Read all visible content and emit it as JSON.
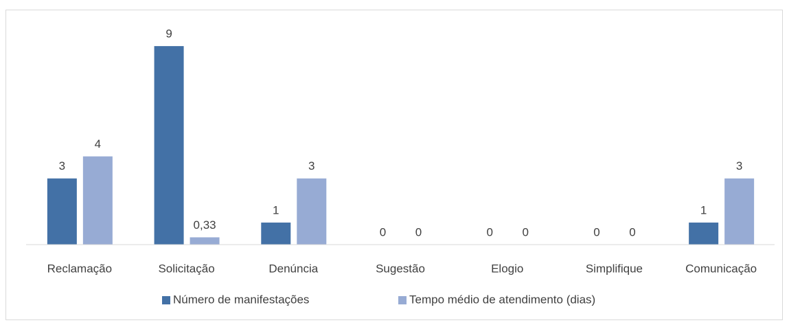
{
  "chart_data": {
    "type": "bar",
    "categories": [
      "Reclamação",
      "Solicitação",
      "Denúncia",
      "Sugestão",
      "Elogio",
      "Simplifique",
      "Comunicação"
    ],
    "series": [
      {
        "name": "Número de manifestações",
        "color": "#4371a6",
        "values": [
          3,
          9,
          1,
          0,
          0,
          0,
          1
        ]
      },
      {
        "name": "Tempo médio de atendimento (dias)",
        "color": "#97abd4",
        "values": [
          4,
          0.33,
          3,
          0,
          0,
          0,
          3
        ],
        "value_labels": [
          "4",
          "0,33",
          "3",
          "0",
          "0",
          "0",
          "3"
        ]
      }
    ],
    "ylim": [
      0,
      10
    ],
    "legend": "bottom"
  }
}
